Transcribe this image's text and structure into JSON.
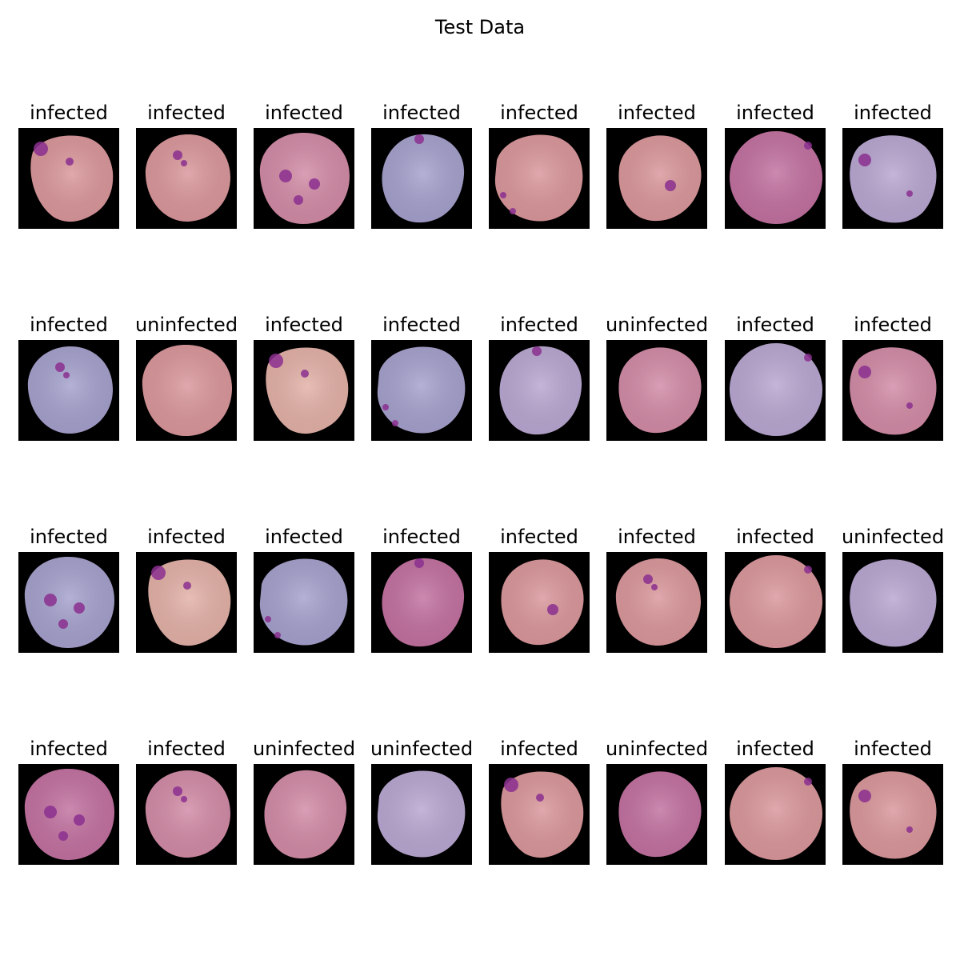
{
  "figure": {
    "title": "Test Data"
  },
  "panels": [
    {
      "label": "infected",
      "cell": "pink",
      "variant": 0
    },
    {
      "label": "infected",
      "cell": "pink",
      "variant": 1
    },
    {
      "label": "infected",
      "cell": "rose",
      "variant": 2
    },
    {
      "label": "infected",
      "cell": "blue",
      "variant": 3
    },
    {
      "label": "infected",
      "cell": "pink",
      "variant": 4
    },
    {
      "label": "infected",
      "cell": "pink",
      "variant": 5
    },
    {
      "label": "infected",
      "cell": "magenta",
      "variant": 6
    },
    {
      "label": "infected",
      "cell": "lilac",
      "variant": 7
    },
    {
      "label": "infected",
      "cell": "blue",
      "variant": 1
    },
    {
      "label": "uninfected",
      "cell": "pink",
      "variant": 2
    },
    {
      "label": "infected",
      "cell": "peach",
      "variant": 0
    },
    {
      "label": "infected",
      "cell": "blue",
      "variant": 4
    },
    {
      "label": "infected",
      "cell": "lilac",
      "variant": 3
    },
    {
      "label": "uninfected",
      "cell": "rose",
      "variant": 5
    },
    {
      "label": "infected",
      "cell": "lilac",
      "variant": 6
    },
    {
      "label": "infected",
      "cell": "rose",
      "variant": 7
    },
    {
      "label": "infected",
      "cell": "blue",
      "variant": 2
    },
    {
      "label": "infected",
      "cell": "peach",
      "variant": 0
    },
    {
      "label": "infected",
      "cell": "blue",
      "variant": 4
    },
    {
      "label": "infected",
      "cell": "magenta",
      "variant": 3
    },
    {
      "label": "infected",
      "cell": "pink",
      "variant": 5
    },
    {
      "label": "infected",
      "cell": "pink",
      "variant": 1
    },
    {
      "label": "infected",
      "cell": "pink",
      "variant": 6
    },
    {
      "label": "uninfected",
      "cell": "lilac",
      "variant": 7
    },
    {
      "label": "infected",
      "cell": "magenta",
      "variant": 2
    },
    {
      "label": "infected",
      "cell": "rose",
      "variant": 1
    },
    {
      "label": "uninfected",
      "cell": "rose",
      "variant": 3
    },
    {
      "label": "uninfected",
      "cell": "lilac",
      "variant": 4
    },
    {
      "label": "infected",
      "cell": "pink",
      "variant": 0
    },
    {
      "label": "uninfected",
      "cell": "magenta",
      "variant": 5
    },
    {
      "label": "infected",
      "cell": "pink",
      "variant": 6
    },
    {
      "label": "infected",
      "cell": "pink",
      "variant": 7
    }
  ],
  "palette": {
    "pink": "#d9969a",
    "rose": "#d18aa5",
    "magenta": "#c1709f",
    "blue": "#a4a0cc",
    "lilac": "#b8a6d0",
    "peach": "#e2b0a6",
    "parasite": "#8b2f8f",
    "background": "#000000"
  }
}
